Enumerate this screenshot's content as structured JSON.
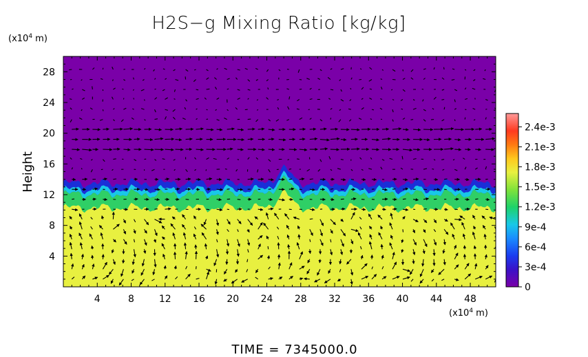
{
  "chart_data": {
    "type": "heatmap",
    "title": "H2S−g Mixing Ratio [kg/kg]",
    "ylabel": "Height",
    "y_units": "(x10",
    "y_units_exp": "4",
    "y_units_tail": " m)",
    "x_units": "(x10",
    "x_units_exp": "4",
    "x_units_tail": " m)",
    "xlim": [
      0,
      51
    ],
    "ylim": [
      0,
      30
    ],
    "x_ticks": [
      "4",
      "8",
      "12",
      "16",
      "20",
      "24",
      "28",
      "32",
      "36",
      "40",
      "44",
      "48"
    ],
    "y_ticks": [
      "4",
      "8",
      "12",
      "16",
      "20",
      "24",
      "28"
    ],
    "colorbar": {
      "ticks": [
        "0",
        "3e-4",
        "6e-4",
        "9e-4",
        "1.2e-3",
        "1.5e-3",
        "1.8e-3",
        "2.1e-3",
        "2.4e-3"
      ],
      "range": [
        0,
        0.0026
      ],
      "colors": [
        "#7a00a8",
        "#2a1fd0",
        "#1a7bff",
        "#18c8e8",
        "#1ed26a",
        "#8fe63a",
        "#e8f040",
        "#ffb21a",
        "#ff4a12",
        "#ff8a8a"
      ]
    },
    "field": {
      "upper_value": 0.0,
      "lower_value": 0.00165,
      "interface_height": 12.5,
      "bump_x": 26,
      "bump_height": 14.5
    },
    "vectors": "velocity vectors overlay (qualitative)",
    "colors": {
      "upper": "#7a00a8",
      "lower": "#e8f040",
      "interface_blue": "#1a2fd8",
      "interface_cyan": "#18c8e8",
      "interface_green": "#34d26a"
    }
  },
  "footer": {
    "label": "TIME",
    "eq": "=",
    "value": "7345000.0"
  }
}
